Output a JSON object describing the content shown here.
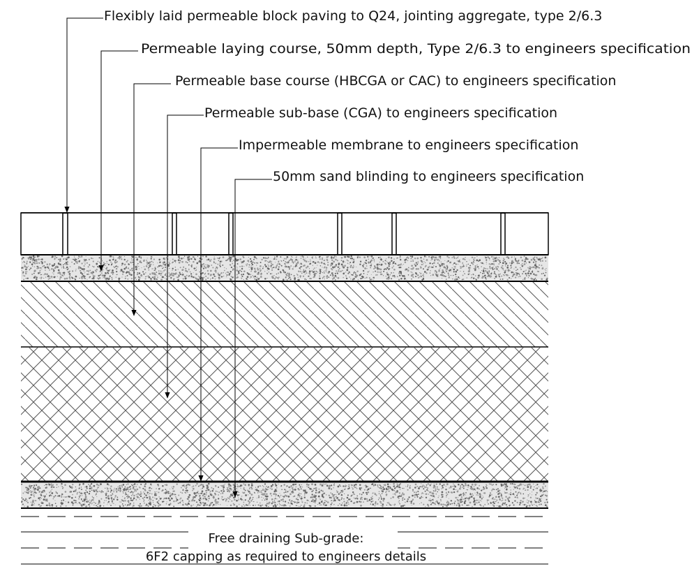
{
  "callouts": [
    {
      "id": "block-paving",
      "text": "Flexibly laid permeable block paving to Q24, jointing aggregate, type 2/6.3"
    },
    {
      "id": "laying-course",
      "text": "Permeable laying course, 50mm depth, Type 2/6.3 to engineers specification"
    },
    {
      "id": "base-course",
      "text": "Permeable base course (HBCGA or CAC) to engineers specification"
    },
    {
      "id": "sub-base",
      "text": "Permeable sub-base (CGA) to engineers specification"
    },
    {
      "id": "membrane",
      "text": "Impermeable membrane to engineers specification"
    },
    {
      "id": "sand-blinding",
      "text": "50mm sand blinding to engineers specification"
    }
  ],
  "subgrade": {
    "line1": "Free draining Sub-grade:",
    "line2": "6F2 capping as required to engineers details"
  },
  "colors": {
    "ink": "#000000",
    "hatch": "#555555",
    "aggregate": "#bdbdbd",
    "background": "#ffffff"
  }
}
